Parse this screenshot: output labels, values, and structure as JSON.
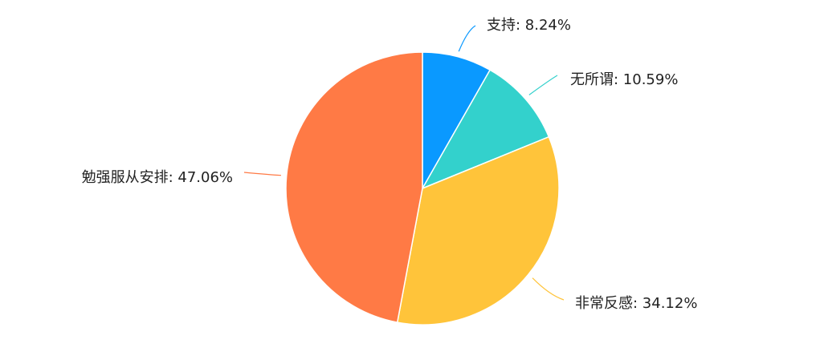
{
  "chart_data": {
    "type": "pie",
    "slices": [
      {
        "label": "支持",
        "value": 8.24,
        "display": "支持: 8.24%",
        "color": "#0A99FF"
      },
      {
        "label": "无所谓",
        "value": 10.59,
        "display": "无所谓: 10.59%",
        "color": "#33D1CC"
      },
      {
        "label": "非常反感",
        "value": 34.12,
        "display": "非常反感: 34.12%",
        "color": "#FFC43A"
      },
      {
        "label": "勉强服从安排",
        "value": 47.06,
        "display": "勉强服从安排: 47.06%",
        "color": "#FF7A45"
      }
    ],
    "title": "",
    "legend": "none",
    "start_angle": "12 o'clock",
    "direction": "clockwise"
  }
}
